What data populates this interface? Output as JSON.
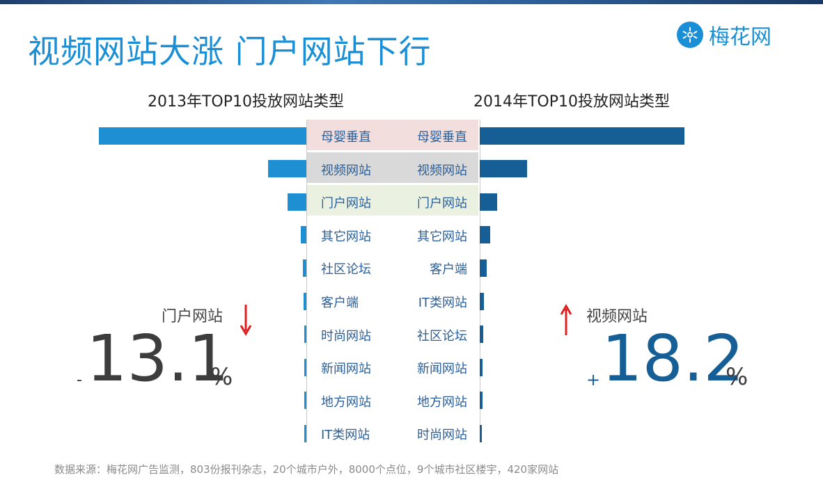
{
  "title": "视频网站大涨  门户网站下行",
  "logo_text": "梅花网",
  "footer": "数据来源：梅花网广告监测，803份报刊杂志，20个城市户外，8000个点位，9个城市社区楼宇，420家网站",
  "highlights": {
    "left_label": "门户网站",
    "left_sign": "-",
    "left_value": "13.1",
    "left_unit": "%",
    "right_label": "视频网站",
    "right_sign": "+",
    "right_value": "18.2",
    "right_unit": "%"
  },
  "colors": {
    "left_bar": "#1f8fd4",
    "right_bar": "#155f96",
    "row_highlight_1": "#f3dede",
    "row_highlight_2": "#d9d9d9",
    "row_highlight_3": "#ebf1e1",
    "arrow": "#e02020"
  },
  "chart_data": [
    {
      "type": "bar",
      "orientation": "horizontal",
      "direction": "leftward",
      "title": "2013年TOP10投放网站类型",
      "categories": [
        "母婴垂直",
        "视频网站",
        "门户网站",
        "其它网站",
        "社区论坛",
        "客户端",
        "时尚网站",
        "新闻网站",
        "地方网站",
        "IT类网站"
      ],
      "values": [
        100,
        18.3,
        9.0,
        2.8,
        1.6,
        1.3,
        1.1,
        1.0,
        0.9,
        0.4
      ],
      "value_scale": "relative (largest = 100)"
    },
    {
      "type": "bar",
      "orientation": "horizontal",
      "direction": "rightward",
      "title": "2014年TOP10投放网站类型",
      "categories": [
        "母婴垂直",
        "视频网站",
        "门户网站",
        "其它网站",
        "客户端",
        "IT类网站",
        "社区论坛",
        "新闻网站",
        "地方网站",
        "时尚网站"
      ],
      "values": [
        100,
        23.0,
        8.5,
        5.1,
        3.4,
        2.0,
        1.7,
        1.4,
        1.4,
        0.7
      ],
      "value_scale": "relative (largest = 100)"
    }
  ]
}
